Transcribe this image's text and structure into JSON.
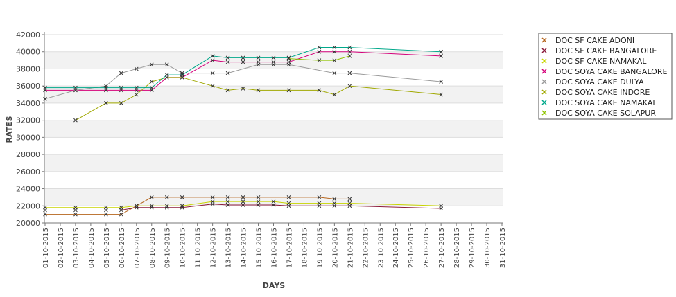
{
  "chart_data": {
    "type": "line",
    "xlabel": "DAYS",
    "ylabel": "RATES",
    "ylim": [
      20000,
      42000
    ],
    "yticks": [
      20000,
      22000,
      24000,
      26000,
      28000,
      30000,
      32000,
      34000,
      36000,
      38000,
      40000,
      42000
    ],
    "x": [
      "01-10-2015",
      "02-10-2015",
      "03-10-2015",
      "04-10-2015",
      "05-10-2015",
      "06-10-2015",
      "07-10-2015",
      "08-10-2015",
      "09-10-2015",
      "10-10-2015",
      "11-10-2015",
      "12-10-2015",
      "13-10-2015",
      "14-10-2015",
      "15-10-2015",
      "16-10-2015",
      "17-10-2015",
      "18-10-2015",
      "19-10-2015",
      "20-10-2015",
      "21-10-2015",
      "22-10-2015",
      "23-10-2015",
      "24-10-2015",
      "25-10-2015",
      "26-10-2015",
      "27-10-2015",
      "28-10-2015",
      "29-10-2015",
      "30-10-2015",
      "31-10-2015"
    ],
    "grid": "horizontal alternating bands",
    "legend_position": "right",
    "series": [
      {
        "name": "DOC SF CAKE ADONI",
        "color": "#b5651d",
        "points": [
          [
            "01-10-2015",
            21000
          ],
          [
            "03-10-2015",
            21000
          ],
          [
            "05-10-2015",
            21000
          ],
          [
            "06-10-2015",
            21000
          ],
          [
            "07-10-2015",
            22000
          ],
          [
            "08-10-2015",
            23000
          ],
          [
            "09-10-2015",
            23000
          ],
          [
            "10-10-2015",
            23000
          ],
          [
            "12-10-2015",
            23000
          ],
          [
            "13-10-2015",
            23000
          ],
          [
            "14-10-2015",
            23000
          ],
          [
            "15-10-2015",
            23000
          ],
          [
            "17-10-2015",
            23000
          ],
          [
            "19-10-2015",
            23000
          ],
          [
            "20-10-2015",
            22800
          ],
          [
            "21-10-2015",
            22800
          ]
        ]
      },
      {
        "name": "DOC SF CAKE BANGALORE",
        "color": "#8b1a3a",
        "points": [
          [
            "01-10-2015",
            21500
          ],
          [
            "03-10-2015",
            21500
          ],
          [
            "05-10-2015",
            21500
          ],
          [
            "06-10-2015",
            21500
          ],
          [
            "07-10-2015",
            21800
          ],
          [
            "08-10-2015",
            21800
          ],
          [
            "09-10-2015",
            21800
          ],
          [
            "10-10-2015",
            21800
          ],
          [
            "12-10-2015",
            22200
          ],
          [
            "13-10-2015",
            22100
          ],
          [
            "14-10-2015",
            22100
          ],
          [
            "15-10-2015",
            22100
          ],
          [
            "16-10-2015",
            22100
          ],
          [
            "17-10-2015",
            22000
          ],
          [
            "19-10-2015",
            22000
          ],
          [
            "20-10-2015",
            22000
          ],
          [
            "21-10-2015",
            22000
          ],
          [
            "27-10-2015",
            21700
          ]
        ]
      },
      {
        "name": "DOC SF CAKE NAMAKAL",
        "color": "#c8d400",
        "points": [
          [
            "01-10-2015",
            21800
          ],
          [
            "03-10-2015",
            21800
          ],
          [
            "05-10-2015",
            21800
          ],
          [
            "06-10-2015",
            21800
          ],
          [
            "07-10-2015",
            22000
          ],
          [
            "08-10-2015",
            22000
          ],
          [
            "09-10-2015",
            22000
          ],
          [
            "10-10-2015",
            22000
          ],
          [
            "12-10-2015",
            22500
          ],
          [
            "13-10-2015",
            22500
          ],
          [
            "14-10-2015",
            22500
          ],
          [
            "15-10-2015",
            22500
          ],
          [
            "16-10-2015",
            22500
          ],
          [
            "17-10-2015",
            22300
          ],
          [
            "19-10-2015",
            22300
          ],
          [
            "20-10-2015",
            22300
          ],
          [
            "21-10-2015",
            22300
          ],
          [
            "27-10-2015",
            22000
          ]
        ]
      },
      {
        "name": "DOC SOYA CAKE BANGALORE",
        "color": "#d4007a",
        "points": [
          [
            "01-10-2015",
            35500
          ],
          [
            "03-10-2015",
            35500
          ],
          [
            "05-10-2015",
            35500
          ],
          [
            "06-10-2015",
            35500
          ],
          [
            "07-10-2015",
            35500
          ],
          [
            "08-10-2015",
            35500
          ],
          [
            "09-10-2015",
            37000
          ],
          [
            "10-10-2015",
            37000
          ],
          [
            "12-10-2015",
            39000
          ],
          [
            "13-10-2015",
            38800
          ],
          [
            "14-10-2015",
            38800
          ],
          [
            "15-10-2015",
            38800
          ],
          [
            "16-10-2015",
            38800
          ],
          [
            "17-10-2015",
            38800
          ],
          [
            "19-10-2015",
            40000
          ],
          [
            "20-10-2015",
            40000
          ],
          [
            "21-10-2015",
            40000
          ],
          [
            "27-10-2015",
            39500
          ]
        ]
      },
      {
        "name": "DOC SOYA CAKE DULYA",
        "color": "#9a9a9a",
        "points": [
          [
            "01-10-2015",
            34500
          ],
          [
            "03-10-2015",
            35500
          ],
          [
            "05-10-2015",
            36000
          ],
          [
            "06-10-2015",
            37500
          ],
          [
            "07-10-2015",
            38000
          ],
          [
            "08-10-2015",
            38500
          ],
          [
            "09-10-2015",
            38500
          ],
          [
            "10-10-2015",
            37500
          ],
          [
            "12-10-2015",
            37500
          ],
          [
            "13-10-2015",
            37500
          ],
          [
            "15-10-2015",
            38500
          ],
          [
            "16-10-2015",
            38500
          ],
          [
            "17-10-2015",
            38500
          ],
          [
            "20-10-2015",
            37500
          ],
          [
            "21-10-2015",
            37500
          ],
          [
            "27-10-2015",
            36500
          ]
        ]
      },
      {
        "name": "DOC SOYA CAKE INDORE",
        "color": "#a0a800",
        "points": [
          [
            "03-10-2015",
            32000
          ],
          [
            "05-10-2015",
            34000
          ],
          [
            "06-10-2015",
            34000
          ],
          [
            "07-10-2015",
            35000
          ],
          [
            "08-10-2015",
            36500
          ],
          [
            "09-10-2015",
            37000
          ],
          [
            "10-10-2015",
            37000
          ],
          [
            "12-10-2015",
            36000
          ],
          [
            "13-10-2015",
            35500
          ],
          [
            "14-10-2015",
            35700
          ],
          [
            "15-10-2015",
            35500
          ],
          [
            "17-10-2015",
            35500
          ],
          [
            "19-10-2015",
            35500
          ],
          [
            "20-10-2015",
            35000
          ],
          [
            "21-10-2015",
            36000
          ],
          [
            "27-10-2015",
            35000
          ]
        ]
      },
      {
        "name": "DOC SOYA CAKE NAMAKAL",
        "color": "#00a88a",
        "points": [
          [
            "01-10-2015",
            35800
          ],
          [
            "03-10-2015",
            35800
          ],
          [
            "05-10-2015",
            35800
          ],
          [
            "06-10-2015",
            35800
          ],
          [
            "07-10-2015",
            35800
          ],
          [
            "08-10-2015",
            35800
          ],
          [
            "09-10-2015",
            37300
          ],
          [
            "10-10-2015",
            37300
          ],
          [
            "12-10-2015",
            39500
          ],
          [
            "13-10-2015",
            39300
          ],
          [
            "14-10-2015",
            39300
          ],
          [
            "15-10-2015",
            39300
          ],
          [
            "16-10-2015",
            39300
          ],
          [
            "17-10-2015",
            39300
          ],
          [
            "19-10-2015",
            40500
          ],
          [
            "20-10-2015",
            40500
          ],
          [
            "21-10-2015",
            40500
          ],
          [
            "27-10-2015",
            40000
          ]
        ]
      },
      {
        "name": "DOC SOYA CAKE SOLAPUR",
        "color": "#8fc400",
        "points": [
          [
            "17-10-2015",
            39200
          ],
          [
            "19-10-2015",
            39000
          ],
          [
            "20-10-2015",
            39000
          ],
          [
            "21-10-2015",
            39500
          ]
        ]
      }
    ]
  }
}
